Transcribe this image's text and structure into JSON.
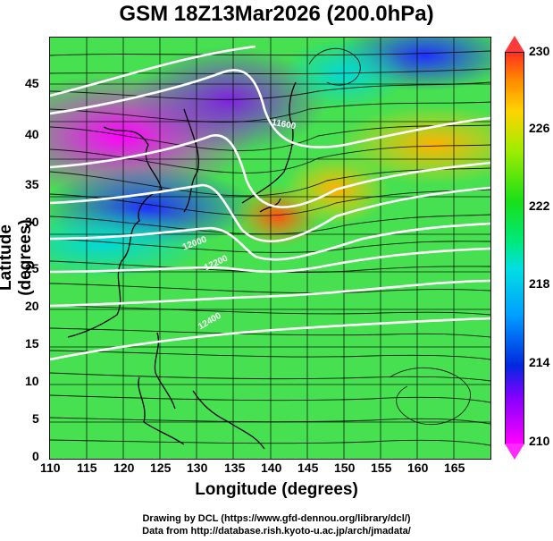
{
  "title": "GSM 18Z13Mar2026 (200.0hPa)",
  "xaxis": {
    "label": "Longitude (degrees)",
    "ticks": [
      "110",
      "115",
      "120",
      "125",
      "130",
      "135",
      "140",
      "145",
      "150",
      "155",
      "160",
      "165"
    ]
  },
  "yaxis": {
    "label": "Latitude  (degrees)",
    "ticks": [
      "0",
      "5",
      "10",
      "15",
      "20",
      "25",
      "30",
      "35",
      "40",
      "45"
    ]
  },
  "colorbar": {
    "labels": [
      "230",
      "226",
      "222",
      "218",
      "214",
      "210"
    ],
    "colors": [
      "#ff3020",
      "#ff8a00",
      "#ffd400",
      "#a0ec00",
      "#18e018",
      "#00e878",
      "#00e0e0",
      "#00a0ff",
      "#0028e0",
      "#8000ff",
      "#ff00ff"
    ]
  },
  "contours": {
    "labels": [
      "11600",
      "12000",
      "12200",
      "12400"
    ]
  },
  "credits": {
    "line1": "Drawing by DCL (https://www.gfd-dennou.org/library/dcl/)",
    "line2": "Data from http://database.rish.kyoto-u.ac.jp/arch/jmadata/"
  },
  "chart_data": {
    "type": "heatmap",
    "title": "GSM 18Z13Mar2026 (200.0hPa)",
    "xlabel": "Longitude (degrees)",
    "ylabel": "Latitude  (degrees)",
    "xlim": [
      110,
      170
    ],
    "ylim": [
      0,
      50
    ],
    "color_range": [
      210,
      230
    ],
    "colorbar_ticks": [
      210,
      214,
      218,
      222,
      226,
      230
    ],
    "overlays": [
      "streamlines",
      "geopotential height contours (white)"
    ]
  }
}
